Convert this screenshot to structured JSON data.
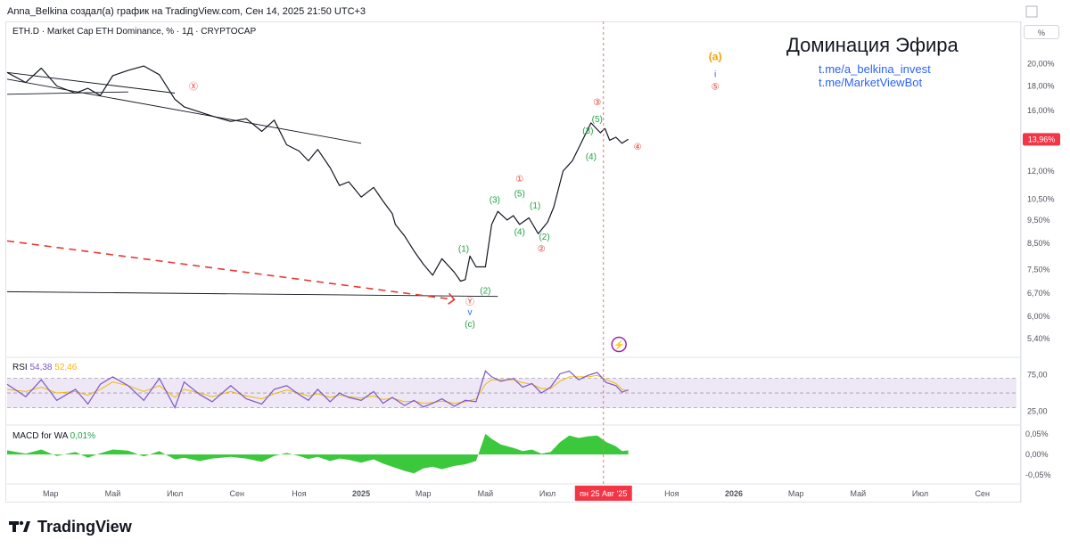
{
  "header": {
    "attribution": "Anna_Belkina создал(а) график на TradingView.com, Сен 14, 2025 21:50 UTC+3"
  },
  "symbol_line": "ETH.D · Market Cap ETH Dominance, % · 1Д · CRYPTOCAP",
  "scale_mode": "%",
  "headline": "Доминация Эфира",
  "links": [
    "t.me/a_belkina_invest",
    "t.me/MarketViewBot"
  ],
  "current_price_label": "13,96%",
  "indicators": {
    "rsi": {
      "label": "RSI",
      "value": "54,38",
      "ma_value": "52,46"
    },
    "macd": {
      "label": "MACD for WA",
      "value": "0,01%"
    }
  },
  "crosshair_date_label": "пн 25 Авг '25",
  "brand": "TradingView",
  "colors": {
    "price": "#131722",
    "rsi": "#7e57c2",
    "rsi_ma": "#f0b90b",
    "rsi_band": "#ede7f6",
    "macd_fill": "#3cc83c",
    "wave_green": "#22a245",
    "wave_red": "#e53935",
    "wave_orange": "#f59f00",
    "wave_blue": "#2962ff",
    "accent_label": "#f23645",
    "crosshair": "#e57373"
  },
  "chart_data": {
    "type": "line",
    "y_scale": "log",
    "ylim": [
      5.0,
      22.5
    ],
    "y_ticks": [
      "20,00%",
      "18,00%",
      "16,00%",
      "13,96%",
      "12,00%",
      "10,50%",
      "9,50%",
      "8,50%",
      "7,50%",
      "6,70%",
      "6,00%",
      "5,40%"
    ],
    "y_tick_values": [
      20.0,
      18.0,
      16.0,
      13.96,
      12.0,
      10.5,
      9.5,
      8.5,
      7.5,
      6.7,
      6.0,
      5.4
    ],
    "x_ticks": [
      "Мар",
      "Май",
      "Июл",
      "Сен",
      "Ноя",
      "2025",
      "Мар",
      "Май",
      "Июл",
      "Авг",
      "Ноя",
      "2026",
      "Мар",
      "Май",
      "Июл",
      "Сен"
    ],
    "x_tick_months": [
      2,
      4,
      6,
      8,
      10,
      12,
      14,
      16,
      18,
      19.8,
      22,
      24,
      26,
      28,
      30,
      32
    ],
    "x_range_months": [
      0.6,
      33.1
    ],
    "series": [
      {
        "name": "ETH.D",
        "x_months": [
          0.6,
          1.2,
          1.7,
          2.2,
          2.8,
          3.2,
          3.6,
          4.0,
          4.5,
          5.0,
          5.5,
          6.0,
          6.3,
          6.8,
          7.2,
          7.8,
          8.3,
          8.8,
          9.2,
          9.6,
          10.0,
          10.3,
          10.6,
          11.0,
          11.3,
          11.6,
          12.0,
          12.4,
          12.7,
          13.0,
          13.1,
          13.4,
          13.7,
          14.0,
          14.3,
          14.6,
          15.0,
          15.2,
          15.35,
          15.5,
          15.7,
          16.0,
          16.2,
          16.4,
          16.7,
          16.9,
          17.1,
          17.4,
          17.7,
          18.0,
          18.2,
          18.5,
          18.8,
          19.1,
          19.4,
          19.7,
          19.85,
          20.0,
          20.2,
          20.4,
          20.6
        ],
        "y_values": [
          19.2,
          18.3,
          19.6,
          18.0,
          17.4,
          17.8,
          17.2,
          18.9,
          19.4,
          19.8,
          19.0,
          16.9,
          16.3,
          15.9,
          15.6,
          15.2,
          15.4,
          14.5,
          15.3,
          13.6,
          13.2,
          12.6,
          13.3,
          12.2,
          11.2,
          11.4,
          10.6,
          11.1,
          10.4,
          9.8,
          9.3,
          8.8,
          8.2,
          7.7,
          7.3,
          7.9,
          7.4,
          7.1,
          7.15,
          8.0,
          7.6,
          7.6,
          9.3,
          9.9,
          9.5,
          9.7,
          9.3,
          9.6,
          8.9,
          9.4,
          10.1,
          12.0,
          12.6,
          13.8,
          15.1,
          14.4,
          14.7,
          13.9,
          14.1,
          13.7,
          13.96
        ]
      }
    ],
    "projection": {
      "x_months": [
        0.6,
        15.0
      ],
      "y_values": [
        8.6,
        6.5
      ]
    },
    "trendlines": [
      {
        "x_months": [
          0.6,
          6.0
        ],
        "y_values": [
          19.2,
          17.4
        ]
      },
      {
        "x_months": [
          0.6,
          12.0
        ],
        "y_values": [
          18.6,
          13.7
        ]
      },
      {
        "x_months": [
          0.6,
          4.5
        ],
        "y_values": [
          17.3,
          17.5
        ]
      },
      {
        "x_months": [
          0.6,
          16.4
        ],
        "y_values": [
          6.75,
          6.6
        ]
      }
    ],
    "wave_labels": [
      {
        "text": "Ⓧ",
        "color": "red",
        "x_month": 6.6,
        "y": 18.0
      },
      {
        "text": "(1)",
        "color": "green",
        "x_month": 15.3,
        "y": 8.3
      },
      {
        "text": "(2)",
        "color": "green",
        "x_month": 16.0,
        "y": 6.8
      },
      {
        "text": "Ⓨ",
        "color": "red",
        "x_month": 15.5,
        "y": 6.45
      },
      {
        "text": "v",
        "color": "blue",
        "x_month": 15.5,
        "y": 6.15
      },
      {
        "text": "(c)",
        "color": "green",
        "x_month": 15.5,
        "y": 5.8
      },
      {
        "text": "(3)",
        "color": "green",
        "x_month": 16.3,
        "y": 10.5
      },
      {
        "text": "(5)",
        "color": "green",
        "x_month": 17.1,
        "y": 10.8
      },
      {
        "text": "①",
        "color": "red",
        "x_month": 17.1,
        "y": 11.6
      },
      {
        "text": "(1)",
        "color": "green",
        "x_month": 17.6,
        "y": 10.2
      },
      {
        "text": "(4)",
        "color": "green",
        "x_month": 17.1,
        "y": 9.0
      },
      {
        "text": "(2)",
        "color": "green",
        "x_month": 17.9,
        "y": 8.8
      },
      {
        "text": "②",
        "color": "red",
        "x_month": 17.8,
        "y": 8.3
      },
      {
        "text": "(3)",
        "color": "green",
        "x_month": 19.3,
        "y": 14.6
      },
      {
        "text": "(5)",
        "color": "green",
        "x_month": 19.6,
        "y": 15.4
      },
      {
        "text": "③",
        "color": "red",
        "x_month": 19.6,
        "y": 16.7
      },
      {
        "text": "(4)",
        "color": "green",
        "x_month": 19.4,
        "y": 12.9
      },
      {
        "text": "④",
        "color": "red",
        "x_month": 20.9,
        "y": 13.5
      },
      {
        "text": "(a)",
        "color": "orange",
        "x_month": 23.4,
        "y": 20.7
      },
      {
        "text": "i",
        "color": "blue",
        "x_month": 23.4,
        "y": 19.1
      },
      {
        "text": "⑤",
        "color": "red",
        "x_month": 23.4,
        "y": 18.0
      }
    ],
    "rsi": {
      "ylim": [
        10,
        95
      ],
      "y_ticks": [
        "75,00",
        "25,00"
      ],
      "y_tick_values": [
        75,
        25
      ],
      "band_levels": [
        70,
        50,
        30
      ],
      "x_months": [
        0.6,
        1.2,
        1.7,
        2.2,
        2.8,
        3.2,
        3.6,
        4.0,
        4.5,
        5.0,
        5.5,
        6.0,
        6.3,
        6.8,
        7.2,
        7.8,
        8.3,
        8.8,
        9.2,
        9.6,
        10.0,
        10.3,
        10.6,
        11.0,
        11.3,
        11.6,
        12.0,
        12.4,
        12.7,
        13.0,
        13.4,
        13.7,
        14.0,
        14.3,
        14.6,
        15.0,
        15.35,
        15.7,
        16.0,
        16.2,
        16.5,
        16.9,
        17.2,
        17.5,
        17.8,
        18.1,
        18.4,
        18.7,
        19.0,
        19.3,
        19.6,
        19.9,
        20.2,
        20.4,
        20.6
      ],
      "values": [
        62,
        45,
        68,
        40,
        55,
        35,
        62,
        72,
        60,
        40,
        70,
        30,
        65,
        48,
        38,
        60,
        42,
        35,
        55,
        60,
        48,
        40,
        55,
        38,
        50,
        44,
        40,
        52,
        36,
        44,
        33,
        40,
        31,
        36,
        42,
        32,
        40,
        38,
        80,
        72,
        66,
        70,
        58,
        63,
        50,
        58,
        76,
        80,
        68,
        74,
        78,
        64,
        60,
        51,
        54.38
      ],
      "ma_values": [
        55,
        52,
        58,
        50,
        52,
        47,
        55,
        65,
        60,
        52,
        60,
        44,
        55,
        50,
        45,
        52,
        46,
        42,
        49,
        54,
        50,
        46,
        49,
        44,
        47,
        45,
        43,
        46,
        41,
        43,
        38,
        39,
        36,
        37,
        39,
        36,
        38,
        42,
        62,
        68,
        68,
        68,
        64,
        62,
        56,
        56,
        66,
        72,
        72,
        72,
        74,
        68,
        63,
        55,
        52.46
      ]
    },
    "macd": {
      "ylim": [
        -0.065,
        0.065
      ],
      "y_ticks": [
        "0,05%",
        "0,00%",
        "-0,05%"
      ],
      "y_tick_values": [
        0.05,
        0.0,
        -0.05
      ],
      "x_months": [
        0.6,
        1.2,
        1.7,
        2.2,
        2.8,
        3.2,
        3.6,
        4.0,
        4.5,
        5.0,
        5.5,
        6.0,
        6.3,
        6.8,
        7.2,
        7.8,
        8.3,
        8.8,
        9.2,
        9.6,
        10.0,
        10.3,
        10.6,
        11.0,
        11.3,
        11.6,
        12.0,
        12.4,
        12.7,
        13.0,
        13.4,
        13.7,
        14.0,
        14.3,
        14.6,
        15.0,
        15.35,
        15.7,
        16.0,
        16.2,
        16.5,
        16.9,
        17.2,
        17.5,
        17.8,
        18.1,
        18.4,
        18.7,
        19.0,
        19.3,
        19.6,
        19.9,
        20.2,
        20.4,
        20.6
      ],
      "values": [
        0.01,
        0.002,
        0.012,
        -0.004,
        0.006,
        -0.008,
        0.003,
        0.012,
        0.009,
        -0.005,
        0.008,
        -0.012,
        -0.008,
        -0.016,
        -0.01,
        -0.006,
        -0.01,
        -0.018,
        -0.004,
        0.004,
        -0.004,
        -0.011,
        -0.006,
        -0.016,
        -0.01,
        -0.013,
        -0.02,
        -0.012,
        -0.022,
        -0.03,
        -0.04,
        -0.046,
        -0.034,
        -0.03,
        -0.036,
        -0.028,
        -0.024,
        -0.016,
        0.05,
        0.038,
        0.024,
        0.016,
        0.008,
        0.012,
        0.002,
        0.006,
        0.03,
        0.046,
        0.04,
        0.044,
        0.046,
        0.03,
        0.02,
        0.008,
        0.01
      ]
    },
    "crosshair_month": 19.8
  }
}
